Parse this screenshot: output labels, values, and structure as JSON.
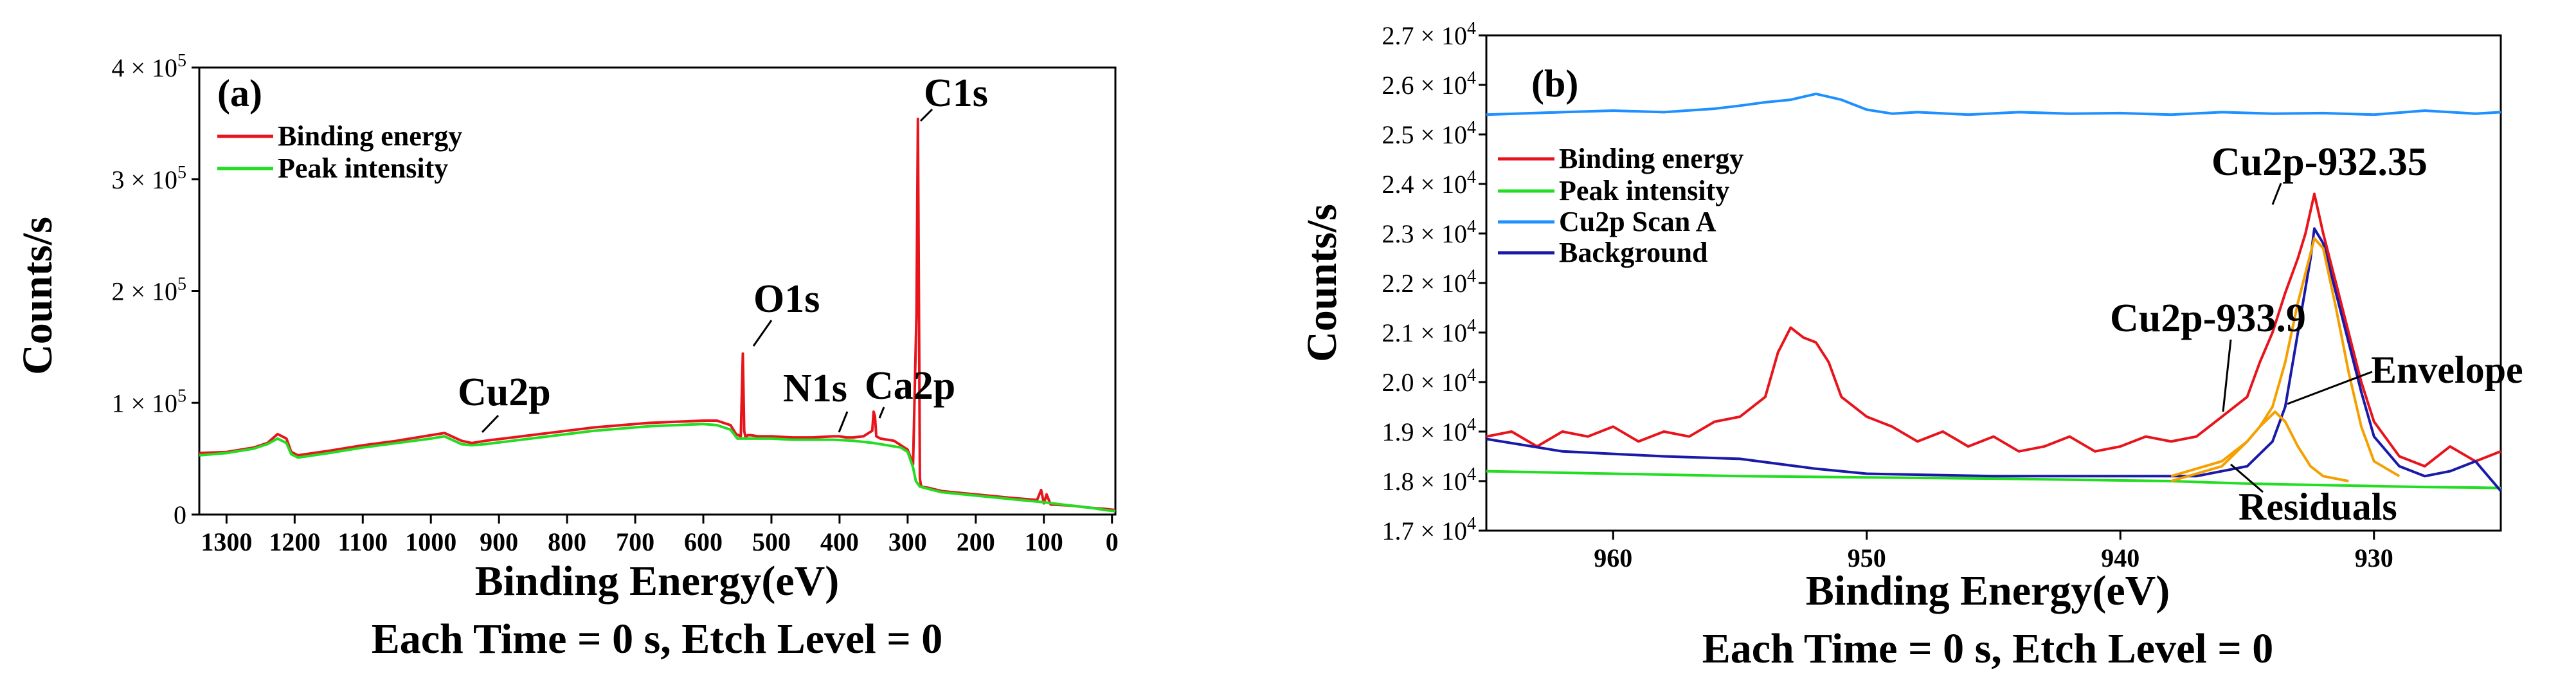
{
  "chart_data": [
    {
      "type": "line",
      "panel_label": "(a)",
      "xlabel": "Binding Energy(eV)",
      "ylabel": "Counts/s",
      "footer": "Each Time = 0 s, Etch Level = 0",
      "xlim": [
        1340,
        -5
      ],
      "ylim": [
        0,
        400000
      ],
      "x_ticks": [
        {
          "v": 1300,
          "label": "1300"
        },
        {
          "v": 1200,
          "label": "1200"
        },
        {
          "v": 1100,
          "label": "1100"
        },
        {
          "v": 1000,
          "label": "1000"
        },
        {
          "v": 900,
          "label": "900"
        },
        {
          "v": 800,
          "label": "800"
        },
        {
          "v": 700,
          "label": "700"
        },
        {
          "v": 600,
          "label": "600"
        },
        {
          "v": 500,
          "label": "500"
        },
        {
          "v": 400,
          "label": "400"
        },
        {
          "v": 300,
          "label": "300"
        },
        {
          "v": 200,
          "label": "200"
        },
        {
          "v": 100,
          "label": "100"
        },
        {
          "v": 0,
          "label": "0"
        }
      ],
      "y_ticks": [
        {
          "v": 0,
          "mant": "0",
          "exp": ""
        },
        {
          "v": 100000,
          "mant": "1 × 10",
          "exp": "5"
        },
        {
          "v": 200000,
          "mant": "2 × 10",
          "exp": "5"
        },
        {
          "v": 300000,
          "mant": "3 × 10",
          "exp": "5"
        },
        {
          "v": 400000,
          "mant": "4 × 10",
          "exp": "5"
        }
      ],
      "legend": [
        {
          "name": "Binding energy",
          "color": "#e8141c"
        },
        {
          "name": "Peak intensity",
          "color": "#22dd22"
        }
      ],
      "series": [
        {
          "name": "Binding energy",
          "color": "#e8141c",
          "x": [
            1340,
            1300,
            1260,
            1240,
            1225,
            1212,
            1205,
            1195,
            1150,
            1100,
            1050,
            1000,
            980,
            955,
            940,
            920,
            880,
            840,
            800,
            760,
            720,
            680,
            640,
            600,
            580,
            560,
            552,
            545,
            542,
            540,
            538,
            535,
            530,
            520,
            500,
            470,
            440,
            410,
            400,
            390,
            380,
            365,
            352,
            350,
            348,
            346,
            340,
            320,
            300,
            292,
            287,
            285,
            283,
            282,
            280,
            270,
            250,
            200,
            150,
            110,
            104,
            100,
            96,
            90,
            60,
            30,
            10,
            -5
          ],
          "y": [
            55000,
            56000,
            60000,
            64000,
            72000,
            68000,
            56000,
            53000,
            57000,
            62000,
            66000,
            71000,
            73000,
            66000,
            64000,
            66000,
            69000,
            72000,
            75000,
            78000,
            80000,
            82000,
            83000,
            84000,
            84000,
            80000,
            72000,
            70000,
            144000,
            75000,
            69000,
            71000,
            71000,
            70000,
            70000,
            69000,
            69000,
            70000,
            70000,
            69000,
            69000,
            70000,
            75000,
            92000,
            88000,
            70000,
            68000,
            66000,
            58000,
            45000,
            180000,
            354000,
            140000,
            32000,
            25000,
            24000,
            21000,
            18000,
            15000,
            13000,
            22000,
            10000,
            18000,
            9000,
            8000,
            6000,
            5000,
            4000
          ]
        },
        {
          "name": "Peak intensity",
          "color": "#22dd22",
          "x": [
            1340,
            1300,
            1260,
            1240,
            1225,
            1212,
            1205,
            1195,
            1150,
            1100,
            1050,
            1000,
            980,
            955,
            940,
            920,
            880,
            840,
            800,
            760,
            720,
            680,
            640,
            600,
            580,
            560,
            550,
            540,
            520,
            500,
            470,
            440,
            410,
            380,
            350,
            330,
            310,
            300,
            292,
            288,
            282,
            270,
            250,
            200,
            150,
            100,
            60,
            30,
            10,
            -5
          ],
          "y": [
            53000,
            55000,
            59000,
            63000,
            68000,
            64000,
            54000,
            51000,
            55000,
            60000,
            64000,
            68000,
            70000,
            63000,
            62000,
            63000,
            66000,
            69000,
            72000,
            75000,
            77000,
            79000,
            80000,
            81000,
            80000,
            76000,
            68000,
            68000,
            68000,
            68000,
            67000,
            67000,
            67000,
            66000,
            64000,
            62000,
            60000,
            56000,
            42000,
            30000,
            25000,
            23000,
            20000,
            17000,
            14000,
            11000,
            8000,
            6000,
            4000,
            3000
          ]
        }
      ],
      "annotations": [
        {
          "text": "C1s",
          "at": [
            285,
            350000
          ]
        },
        {
          "text": "O1s",
          "at": [
            538,
            145000
          ]
        },
        {
          "text": "Cu2p",
          "at": [
            940,
            68000
          ]
        },
        {
          "text": "N1s",
          "at": [
            400,
            70000
          ]
        },
        {
          "text": "Ca2p",
          "at": [
            350,
            92000
          ]
        }
      ]
    },
    {
      "type": "line",
      "panel_label": "(b)",
      "xlabel": "Binding Energy(eV)",
      "ylabel": "Counts/s",
      "footer": "Each Time = 0 s, Etch Level = 0",
      "xlim": [
        965,
        925
      ],
      "ylim": [
        17000,
        27000
      ],
      "x_ticks": [
        {
          "v": 960,
          "label": "960"
        },
        {
          "v": 950,
          "label": "950"
        },
        {
          "v": 940,
          "label": "940"
        },
        {
          "v": 930,
          "label": "930"
        }
      ],
      "y_ticks": [
        {
          "v": 17000,
          "mant": "1.7 × 10",
          "exp": "4"
        },
        {
          "v": 18000,
          "mant": "1.8 × 10",
          "exp": "4"
        },
        {
          "v": 19000,
          "mant": "1.9 × 10",
          "exp": "4"
        },
        {
          "v": 20000,
          "mant": "2.0 × 10",
          "exp": "4"
        },
        {
          "v": 21000,
          "mant": "2.1 × 10",
          "exp": "4"
        },
        {
          "v": 22000,
          "mant": "2.2 × 10",
          "exp": "4"
        },
        {
          "v": 23000,
          "mant": "2.3 × 10",
          "exp": "4"
        },
        {
          "v": 24000,
          "mant": "2.4 × 10",
          "exp": "4"
        },
        {
          "v": 25000,
          "mant": "2.5 × 10",
          "exp": "4"
        },
        {
          "v": 26000,
          "mant": "2.6 × 10",
          "exp": "4"
        },
        {
          "v": 27000,
          "mant": "2.7 × 10",
          "exp": "4"
        }
      ],
      "legend": [
        {
          "name": "Binding energy",
          "color": "#e8141c"
        },
        {
          "name": "Peak intensity",
          "color": "#22dd22"
        },
        {
          "name": "Cu2p Scan A",
          "color": "#1e90ff"
        },
        {
          "name": "Background",
          "color": "#1a1aaa"
        }
      ],
      "series": [
        {
          "name": "Binding energy",
          "color": "#e8141c",
          "x": [
            965,
            964,
            963,
            962,
            961,
            960,
            959,
            958,
            957,
            956,
            955,
            954,
            953.5,
            953,
            952.5,
            952,
            951.5,
            951,
            950,
            949,
            948,
            947,
            946,
            945,
            944,
            943,
            942,
            941,
            940,
            939,
            938,
            937,
            936,
            935,
            934.5,
            934,
            933.5,
            933,
            932.7,
            932.35,
            932,
            931.5,
            931,
            930.5,
            930,
            929,
            928,
            927,
            926,
            925
          ],
          "y": [
            18900,
            19000,
            18700,
            19000,
            18900,
            19100,
            18800,
            19000,
            18900,
            19200,
            19300,
            19700,
            20600,
            21100,
            20900,
            20800,
            20400,
            19700,
            19300,
            19100,
            18800,
            19000,
            18700,
            18900,
            18600,
            18700,
            18900,
            18600,
            18700,
            18900,
            18800,
            18900,
            19300,
            19700,
            20400,
            21000,
            21800,
            22500,
            23000,
            23800,
            23000,
            22000,
            21000,
            20000,
            19200,
            18500,
            18300,
            18700,
            18400,
            18600
          ]
        },
        {
          "name": "Peak intensity",
          "color": "#22dd22",
          "x": [
            965,
            955,
            945,
            938,
            935,
            932,
            930,
            928,
            926,
            925
          ],
          "y": [
            18200,
            18100,
            18050,
            18000,
            17950,
            17920,
            17900,
            17880,
            17870,
            17860
          ]
        },
        {
          "name": "Cu2p Scan A",
          "color": "#1e90ff",
          "x": [
            965,
            962,
            960,
            958,
            956,
            955,
            954,
            953,
            952,
            951,
            950,
            949,
            948,
            946,
            944,
            942,
            940,
            938,
            936,
            934,
            932,
            930,
            928,
            926,
            925
          ],
          "y": [
            25400,
            25450,
            25480,
            25450,
            25520,
            25580,
            25650,
            25700,
            25820,
            25700,
            25500,
            25420,
            25450,
            25400,
            25450,
            25420,
            25430,
            25400,
            25450,
            25420,
            25430,
            25400,
            25480,
            25420,
            25450
          ]
        },
        {
          "name": "Background",
          "color": "#1a1aaa",
          "x": [
            965,
            962,
            958,
            955,
            952,
            950,
            945,
            940,
            937,
            935,
            934,
            933.5,
            933,
            932.5,
            932.35,
            932,
            931.5,
            931,
            930.5,
            930,
            929,
            928,
            927,
            926,
            925
          ],
          "y": [
            18850,
            18600,
            18500,
            18450,
            18250,
            18150,
            18100,
            18100,
            18100,
            18300,
            18800,
            19500,
            21000,
            22500,
            23100,
            22800,
            21800,
            20800,
            19800,
            18900,
            18300,
            18100,
            18200,
            18400,
            17800
          ]
        },
        {
          "name": "Envelope",
          "color": "#f5a000",
          "x": [
            938,
            936,
            935,
            934.5,
            934,
            933.5,
            933,
            932.5,
            932.35,
            932,
            931.5,
            931,
            930.5,
            930,
            929
          ],
          "y": [
            18100,
            18400,
            18800,
            19100,
            19500,
            20400,
            21600,
            22600,
            22900,
            22700,
            21500,
            20200,
            19100,
            18400,
            18100
          ]
        },
        {
          "name": "Cu2p-933.9 component",
          "color": "#f5a000",
          "x": [
            938,
            936,
            935,
            934.5,
            933.9,
            933.5,
            933,
            932.5,
            932,
            931
          ],
          "y": [
            18000,
            18300,
            18800,
            19100,
            19400,
            19200,
            18700,
            18300,
            18100,
            18000
          ]
        }
      ],
      "annotations": [
        {
          "text": "Cu2p-932.35",
          "at": [
            932.35,
            23800
          ]
        },
        {
          "text": "Cu2p-933.9",
          "at": [
            933.9,
            19400
          ]
        },
        {
          "text": "Envelope",
          "at": [
            933.5,
            20400
          ]
        },
        {
          "text": "Residuals",
          "at": [
            933.5,
            18000
          ]
        }
      ]
    }
  ]
}
